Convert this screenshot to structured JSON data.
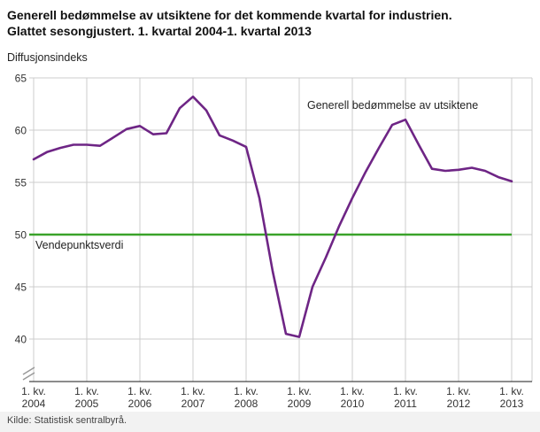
{
  "header": {
    "title_line1": "Generell bedømmelse av utsiktene for det kommende kvartal for industrien.",
    "title_line2": "Glattet sesongjustert. 1. kvartal 2004-1. kvartal 2013"
  },
  "axis_unit_label": "Diffusjonsindeks",
  "footer": {
    "source": "Kilde: Statistisk sentralbyrå."
  },
  "colors": {
    "series": "#6e2585",
    "reference": "#3aa32a",
    "grid": "#cccccc",
    "axis": "#1a1a1a",
    "axis_break": "#999999"
  },
  "chart_data": {
    "type": "line",
    "title": "Generell bedømmelse av utsiktene for det kommende kvartal for industrien. Glattet sesongjustert. 1. kvartal 2004-1. kvartal 2013",
    "ylabel": "Diffusjonsindeks",
    "xlabel": "",
    "grid": true,
    "axis_break": true,
    "legend_position": "inside-top-right",
    "y_ticks": [
      40,
      45,
      50,
      55,
      60,
      65
    ],
    "ylim": [
      40,
      65
    ],
    "x_ticks": [
      {
        "quarter": "1. kv.",
        "year": "2004"
      },
      {
        "quarter": "1. kv.",
        "year": "2005"
      },
      {
        "quarter": "1. kv.",
        "year": "2006"
      },
      {
        "quarter": "1. kv.",
        "year": "2007"
      },
      {
        "quarter": "1. kv.",
        "year": "2008"
      },
      {
        "quarter": "1. kv.",
        "year": "2009"
      },
      {
        "quarter": "1. kv.",
        "year": "2010"
      },
      {
        "quarter": "1. kv.",
        "year": "2011"
      },
      {
        "quarter": "1. kv.",
        "year": "2012"
      },
      {
        "quarter": "1. kv.",
        "year": "2013"
      }
    ],
    "points_per_year": 4,
    "series": [
      {
        "name": "Generell bedømmelse av utsiktene",
        "color": "#6e2585",
        "values": [
          57.2,
          57.9,
          58.3,
          58.6,
          58.6,
          58.5,
          59.3,
          60.1,
          60.4,
          59.6,
          59.7,
          62.1,
          63.2,
          61.9,
          59.5,
          59.0,
          58.4,
          53.5,
          46.5,
          40.5,
          40.2,
          45.0,
          47.8,
          50.8,
          53.5,
          56.0,
          58.3,
          60.5,
          61.0,
          58.6,
          56.3,
          56.1,
          56.2,
          56.4,
          56.1,
          55.5,
          55.1
        ]
      }
    ],
    "reference_line": {
      "label": "Vendepunktsverdi",
      "value": 50,
      "color": "#3aa32a"
    }
  }
}
